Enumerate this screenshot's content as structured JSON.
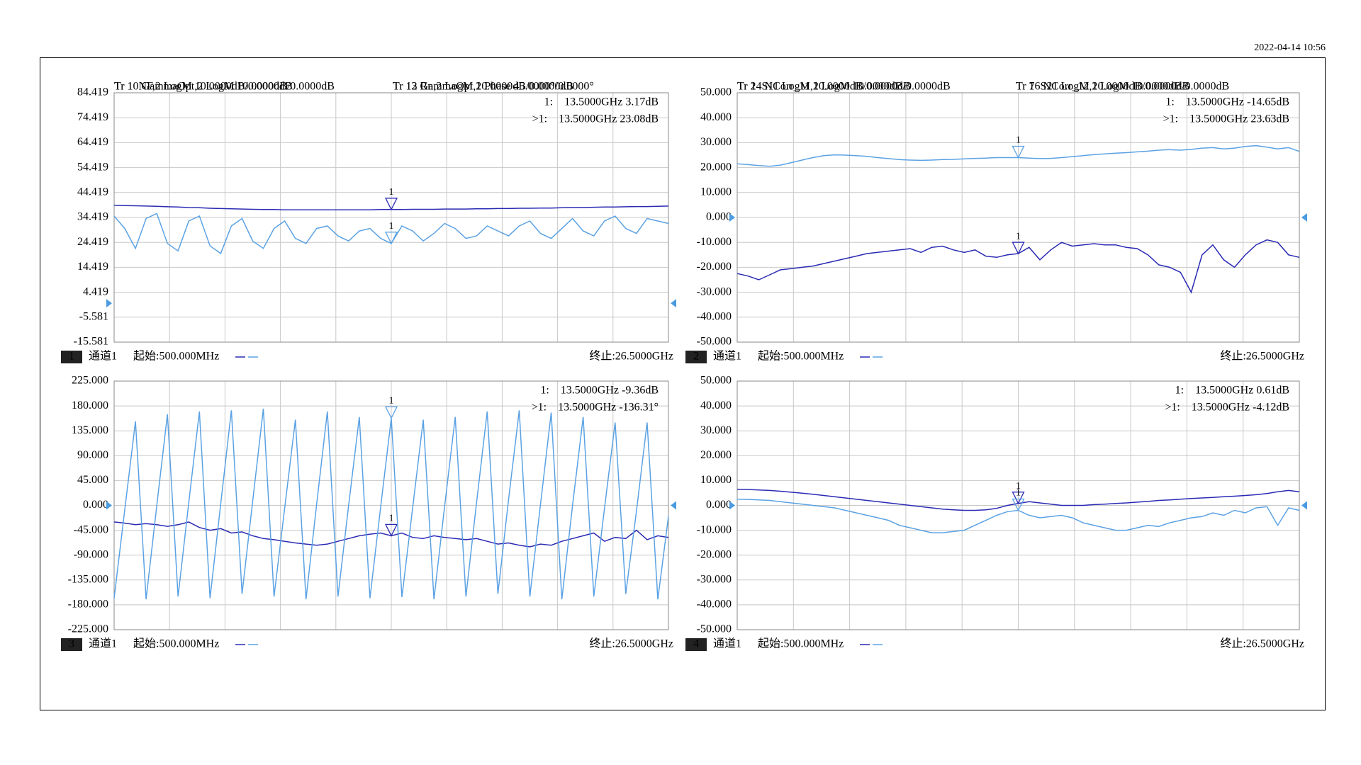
{
  "timestamp": "2022-04-14 10:56",
  "chart_data": [
    {
      "type": "line",
      "x": [
        0.5,
        1,
        1.5,
        2,
        2.5,
        3,
        3.5,
        4,
        4.5,
        5,
        5.5,
        6,
        6.5,
        7,
        7.5,
        8,
        8.5,
        9,
        9.5,
        10,
        10.5,
        11,
        11.5,
        12,
        12.5,
        13,
        13.5,
        14,
        14.5,
        15,
        15.5,
        16,
        16.5,
        17,
        17.5,
        18,
        18.5,
        19,
        19.5,
        20,
        20.5,
        21,
        21.5,
        22,
        22.5,
        23,
        23.5,
        24,
        24.5,
        25,
        25.5,
        26,
        26.5
      ],
      "xlim": [
        0.5,
        26.5
      ],
      "ylim": [
        -15.581,
        84.419
      ],
      "yticks": [
        84.419,
        74.419,
        64.419,
        54.419,
        44.419,
        34.419,
        24.419,
        14.419,
        4.419,
        -5.581,
        -15.581
      ],
      "grid": true,
      "reference_level": 0,
      "series": [
        {
          "name": "Tr 1  NF,2 LogM 10.0000dB/0.0000dB",
          "color": "#2a2ab4",
          "readout": "1:    13.5000GHz 3.17dB",
          "values": [
            39.3,
            39.2,
            39.1,
            39.0,
            38.9,
            38.7,
            38.6,
            38.4,
            38.3,
            38.1,
            38.0,
            37.9,
            37.8,
            37.7,
            37.6,
            37.6,
            37.5,
            37.5,
            37.5,
            37.5,
            37.5,
            37.5,
            37.5,
            37.5,
            37.5,
            37.6,
            37.6,
            37.6,
            37.7,
            37.7,
            37.7,
            37.8,
            37.8,
            37.8,
            37.9,
            37.9,
            38.0,
            38.0,
            38.1,
            38.1,
            38.2,
            38.2,
            38.3,
            38.4,
            38.4,
            38.5,
            38.6,
            38.6,
            38.7,
            38.8,
            38.8,
            38.9,
            39.0
          ]
        },
        {
          "name": "Tr 12 Rn,2 LogM 10.0000dB/0.0000dB",
          "color": "#5ba2e4",
          "readout": ">1:    13.5000GHz 23.08dB",
          "values": [
            35,
            30,
            22,
            34,
            36,
            24,
            21,
            33,
            35,
            23,
            20,
            31,
            34,
            25,
            22,
            30,
            33,
            26,
            24,
            30,
            31,
            27,
            25,
            29,
            30,
            26,
            24,
            31,
            29,
            25,
            28,
            32,
            30,
            26,
            27,
            31,
            29,
            27,
            31,
            33,
            28,
            26,
            30,
            34,
            29,
            27,
            33,
            35,
            30,
            28,
            34,
            33,
            32
          ]
        }
      ],
      "marker": {
        "label": "1",
        "x": 13.5
      },
      "channel_number": "1",
      "channel": "通道1",
      "start": "起始:500.000MHz",
      "stop": "终止:26.5000GHz"
    },
    {
      "type": "line",
      "x": [
        0.5,
        1,
        1.5,
        2,
        2.5,
        3,
        3.5,
        4,
        4.5,
        5,
        5.5,
        6,
        6.5,
        7,
        7.5,
        8,
        8.5,
        9,
        9.5,
        10,
        10.5,
        11,
        11.5,
        12,
        12.5,
        13,
        13.5,
        14,
        14.5,
        15,
        15.5,
        16,
        16.5,
        17,
        17.5,
        18,
        18.5,
        19,
        19.5,
        20,
        20.5,
        21,
        21.5,
        22,
        22.5,
        23,
        23.5,
        24,
        24.5,
        25,
        25.5,
        26,
        26.5
      ],
      "xlim": [
        0.5,
        26.5
      ],
      "ylim": [
        -50,
        50
      ],
      "yticks": [
        {
          "value": 50,
          "label": "50.000"
        },
        {
          "value": 40,
          "label": "40.000"
        },
        {
          "value": 30,
          "label": "30.000"
        },
        {
          "value": 20,
          "label": "20.000"
        },
        {
          "value": 10,
          "label": "10.000"
        },
        {
          "value": 0,
          "label": "0.000"
        },
        {
          "value": -10,
          "label": "-10.000"
        },
        {
          "value": -20,
          "label": "-20.000"
        },
        {
          "value": -30,
          "label": "-30.000"
        },
        {
          "value": -40,
          "label": "-40.000"
        },
        {
          "value": -50,
          "label": "-50.000"
        }
      ],
      "grid": true,
      "reference_level": 0,
      "series": [
        {
          "name": "Tr 2  S11 LogM 10.0000dB/0.0000dB",
          "color": "#2a2ab4",
          "readout": "1:    13.5000GHz -14.65dB",
          "values": [
            -22.5,
            -23.5,
            -25,
            -23,
            -21,
            -20.5,
            -20,
            -19.5,
            -18.5,
            -17.5,
            -16.5,
            -15.5,
            -14.5,
            -14,
            -13.5,
            -13,
            -12.5,
            -14,
            -12,
            -11.5,
            -13,
            -14,
            -13,
            -15.5,
            -16,
            -15,
            -14.5,
            -12,
            -17,
            -13,
            -10,
            -11.5,
            -11,
            -10.5,
            -11,
            -11,
            -12,
            -12.5,
            -15,
            -19,
            -20,
            -22,
            -30,
            -15,
            -11,
            -17,
            -20,
            -15,
            -11,
            -9,
            -10,
            -15,
            -16
          ]
        },
        {
          "name": "Tr 7  S21 LogM 10.0000dB/0.0000dB",
          "color": "#5ba2e4",
          "readout": ">1:    13.5000GHz 23.63dB",
          "values": [
            21.5,
            21.2,
            20.8,
            20.5,
            21,
            22,
            23,
            24,
            24.8,
            25.1,
            25.0,
            24.8,
            24.5,
            24.0,
            23.6,
            23.2,
            23.0,
            22.9,
            23.0,
            23.2,
            23.3,
            23.5,
            23.7,
            23.8,
            24,
            24,
            24,
            23.8,
            23.6,
            23.7,
            24,
            24.4,
            24.8,
            25.2,
            25.5,
            25.8,
            26.0,
            26.3,
            26.6,
            27.0,
            27.2,
            27.0,
            27.3,
            27.8,
            28.0,
            27.5,
            27.8,
            28.5,
            28.8,
            28.2,
            27.5,
            28.0,
            26.5
          ]
        }
      ],
      "marker": {
        "label": "1",
        "x": 13.5
      },
      "channel_number": "2",
      "channel": "通道1",
      "start": "起始:500.000MHz",
      "stop": "终止:26.5000GHz"
    },
    {
      "type": "line",
      "x": [
        0.5,
        1,
        1.5,
        2,
        2.5,
        3,
        3.5,
        4,
        4.5,
        5,
        5.5,
        6,
        6.5,
        7,
        7.5,
        8,
        8.5,
        9,
        9.5,
        10,
        10.5,
        11,
        11.5,
        12,
        12.5,
        13,
        13.5,
        14,
        14.5,
        15,
        15.5,
        16,
        16.5,
        17,
        17.5,
        18,
        18.5,
        19,
        19.5,
        20,
        20.5,
        21,
        21.5,
        22,
        22.5,
        23,
        23.5,
        24,
        24.5,
        25,
        25.5,
        26,
        26.5
      ],
      "xlim": [
        0.5,
        26.5
      ],
      "ylim": [
        -225,
        225
      ],
      "yticks": [
        {
          "value": 225,
          "label": "225.000"
        },
        {
          "value": 180,
          "label": "180.000"
        },
        {
          "value": 135,
          "label": "135.000"
        },
        {
          "value": 90,
          "label": "90.000"
        },
        {
          "value": 45,
          "label": "45.000"
        },
        {
          "value": 0,
          "label": "0.000"
        },
        {
          "value": -45,
          "label": "-45.000"
        },
        {
          "value": -90,
          "label": "-90.000"
        },
        {
          "value": -135,
          "label": "-135.000"
        },
        {
          "value": -180,
          "label": "-180.000"
        },
        {
          "value": -225,
          "label": "-225.000"
        }
      ],
      "grid": true,
      "reference_level": 0,
      "series": [
        {
          "name": "Tr 10 GammaOpt,2 LogM 10.0000dB/0.0000dB",
          "color": "#2a2ab4",
          "readout": "1:    13.5000GHz -9.36dB",
          "values": [
            -30,
            -32,
            -35,
            -33,
            -35,
            -38,
            -35,
            -30,
            -40,
            -45,
            -42,
            -50,
            -48,
            -55,
            -60,
            -62,
            -65,
            -68,
            -70,
            -72,
            -70,
            -65,
            -60,
            -55,
            -52,
            -50,
            -55,
            -50,
            -58,
            -60,
            -55,
            -58,
            -60,
            -62,
            -60,
            -65,
            -70,
            -68,
            -72,
            -75,
            -70,
            -72,
            -65,
            -60,
            -55,
            -50,
            -65,
            -58,
            -60,
            -45,
            -62,
            -55,
            -58
          ]
        },
        {
          "name": "Tr 13 GammaOpt,2 Phase 45.0000°/0.0000°",
          "color": "#5ba2e4",
          "readout": ">1:    13.5000GHz -136.31°",
          "values": [
            -168,
            -8,
            152,
            -170,
            0,
            165,
            -165,
            5,
            170,
            -168,
            3,
            172,
            -160,
            8,
            175,
            -165,
            -5,
            155,
            -170,
            2,
            170,
            -165,
            0,
            160,
            -168,
            -3,
            158,
            -166,
            -5,
            155,
            -170,
            -2,
            160,
            -165,
            5,
            170,
            -160,
            10,
            172,
            -165,
            2,
            168,
            -170,
            0,
            160,
            -165,
            -5,
            150,
            -160,
            -10,
            150,
            -170,
            -20
          ]
        }
      ],
      "marker": {
        "label": "1",
        "x": 13.5
      },
      "channel_number": "3",
      "channel": "通道1",
      "start": "起始:500.000MHz",
      "stop": "终止:26.5000GHz"
    },
    {
      "type": "line",
      "x": [
        0.5,
        1,
        1.5,
        2,
        2.5,
        3,
        3.5,
        4,
        4.5,
        5,
        5.5,
        6,
        6.5,
        7,
        7.5,
        8,
        8.5,
        9,
        9.5,
        10,
        10.5,
        11,
        11.5,
        12,
        12.5,
        13,
        13.5,
        14,
        14.5,
        15,
        15.5,
        16,
        16.5,
        17,
        17.5,
        18,
        18.5,
        19,
        19.5,
        20,
        20.5,
        21,
        21.5,
        22,
        22.5,
        23,
        23.5,
        24,
        24.5,
        25,
        25.5,
        26,
        26.5
      ],
      "xlim": [
        0.5,
        26.5
      ],
      "ylim": [
        -50,
        50
      ],
      "yticks": [
        {
          "value": 50,
          "label": "50.000"
        },
        {
          "value": 40,
          "label": "40.000"
        },
        {
          "value": 30,
          "label": "30.000"
        },
        {
          "value": 20,
          "label": "20.000"
        },
        {
          "value": 10,
          "label": "10.000"
        },
        {
          "value": 0,
          "label": "0.000"
        },
        {
          "value": -10,
          "label": "-10.000"
        },
        {
          "value": -20,
          "label": "-20.000"
        },
        {
          "value": -30,
          "label": "-30.000"
        },
        {
          "value": -40,
          "label": "-40.000"
        },
        {
          "value": -50,
          "label": "-50.000"
        }
      ],
      "grid": true,
      "reference_level": 0,
      "series": [
        {
          "name": "Tr 14 NCorr_11,2 LogM 10.0000dB/0.0000dB",
          "color": "#2a2ab4",
          "readout": "1:    13.5000GHz 0.61dB",
          "values": [
            6.5,
            6.4,
            6.2,
            6.0,
            5.7,
            5.3,
            4.9,
            4.5,
            4.0,
            3.5,
            3.0,
            2.5,
            2.0,
            1.5,
            1.0,
            0.5,
            0,
            -0.5,
            -1,
            -1.5,
            -1.8,
            -2,
            -2,
            -1.8,
            -1.2,
            0,
            0.8,
            1.5,
            1.0,
            0.5,
            0,
            0,
            0,
            0.3,
            0.5,
            0.8,
            1.0,
            1.3,
            1.6,
            2.0,
            2.2,
            2.5,
            2.8,
            3.0,
            3.2,
            3.5,
            3.7,
            4.0,
            4.3,
            4.8,
            5.5,
            6.0,
            5.5
          ]
        },
        {
          "name": "Tr 16 NCorr_12,2 LogM 10.0000dB/0.0000dB",
          "color": "#5ba2e4",
          "readout": ">1:    13.5000GHz -4.12dB",
          "values": [
            2.5,
            2.4,
            2.2,
            2.0,
            1.5,
            1.0,
            0.5,
            0,
            -0.5,
            -1,
            -2,
            -3,
            -4,
            -5,
            -6,
            -8,
            -9,
            -10,
            -11,
            -11,
            -10.5,
            -10,
            -8,
            -6,
            -4,
            -2.5,
            -2,
            -4,
            -5,
            -4.5,
            -4,
            -5,
            -7,
            -8,
            -9,
            -10,
            -10,
            -9,
            -8,
            -8.5,
            -7,
            -6,
            -5,
            -4.5,
            -3,
            -4,
            -2,
            -3,
            -1,
            -0.5,
            -8,
            -1,
            -2
          ]
        }
      ],
      "marker": {
        "label": "1",
        "x": 13.5
      },
      "channel_number": "4",
      "channel": "通道1",
      "start": "起始:500.000MHz",
      "stop": "终止:26.5000GHz"
    }
  ]
}
